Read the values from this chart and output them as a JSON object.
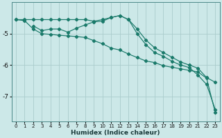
{
  "xlabel": "Humidex (Indice chaleur)",
  "bg_color": "#cce8e8",
  "grid_color": "#aacccc",
  "line_color": "#1a7a6a",
  "xlim": [
    -0.5,
    23.5
  ],
  "ylim": [
    -7.8,
    -4.0
  ],
  "yticks": [
    -7,
    -6,
    -5
  ],
  "xticks": [
    0,
    1,
    2,
    3,
    4,
    5,
    6,
    7,
    8,
    9,
    10,
    11,
    12,
    13,
    14,
    15,
    16,
    17,
    18,
    19,
    20,
    21,
    22,
    23
  ],
  "series1_x": [
    0,
    1,
    2,
    3,
    4,
    5,
    6,
    7,
    8,
    9,
    10,
    11,
    12,
    13,
    14,
    15,
    16,
    17,
    18,
    19,
    20,
    21,
    22,
    23
  ],
  "series1_y": [
    -4.55,
    -4.55,
    -4.55,
    -4.55,
    -4.55,
    -4.55,
    -4.55,
    -4.55,
    -4.55,
    -4.6,
    -4.55,
    -4.48,
    -4.42,
    -4.55,
    -4.85,
    -5.2,
    -5.45,
    -5.6,
    -5.75,
    -5.9,
    -6.0,
    -6.1,
    -6.4,
    -6.55
  ],
  "series2_x": [
    2,
    3,
    4,
    5,
    6,
    7,
    8,
    9,
    10,
    11,
    12,
    13,
    14,
    15,
    16,
    17,
    18,
    19,
    20,
    21,
    22,
    23
  ],
  "series2_y": [
    -4.75,
    -4.9,
    -4.85,
    -4.85,
    -4.95,
    -4.82,
    -4.72,
    -4.62,
    -4.6,
    -4.48,
    -4.42,
    -4.55,
    -5.0,
    -5.35,
    -5.6,
    -5.72,
    -5.88,
    -6.0,
    -6.08,
    -6.32,
    -6.62,
    -7.42
  ],
  "series3_x": [
    0,
    1,
    2,
    3,
    4,
    5,
    6,
    7,
    8,
    9,
    10,
    11,
    12,
    13,
    14,
    15,
    16,
    17,
    18,
    19,
    20,
    21,
    22,
    23
  ],
  "series3_y": [
    -4.55,
    -4.58,
    -4.85,
    -5.0,
    -5.02,
    -5.05,
    -5.07,
    -5.09,
    -5.12,
    -5.22,
    -5.32,
    -5.46,
    -5.52,
    -5.65,
    -5.76,
    -5.87,
    -5.92,
    -6.02,
    -6.07,
    -6.12,
    -6.17,
    -6.22,
    -6.42,
    -7.52
  ]
}
